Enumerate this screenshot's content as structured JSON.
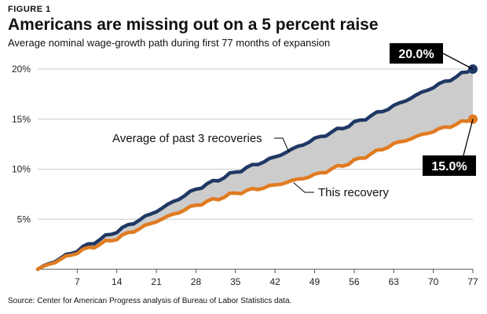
{
  "header": {
    "figure_label": "FIGURE 1",
    "title": "Americans are missing out on a 5 percent raise",
    "subtitle": "Average nominal wage-growth path during first 77 months of expansion"
  },
  "footer": {
    "source": "Source: Center for American Progress analysis of Bureau of Labor Statistics data."
  },
  "colors": {
    "navy": "#1f3864",
    "orange": "#e07b21",
    "gap_fill": "#cccccc",
    "callout_bg": "#000000"
  },
  "chart_data": {
    "type": "line",
    "title": "Americans are missing out on a 5 percent raise",
    "subtitle": "Average nominal wage-growth path during first 77 months of expansion",
    "xlabel": "",
    "ylabel": "",
    "xlim": [
      0,
      77
    ],
    "ylim": [
      0,
      20
    ],
    "x_ticks": [
      7,
      14,
      21,
      28,
      35,
      42,
      49,
      56,
      63,
      70,
      77
    ],
    "x_tick_labels": [
      "7",
      "14",
      "21",
      "28",
      "35",
      "42",
      "49",
      "56",
      "63",
      "70",
      "77"
    ],
    "y_ticks": [
      5,
      10,
      15,
      20
    ],
    "y_tick_labels": [
      "5%",
      "10%",
      "15%",
      "20%"
    ],
    "grid": "horizontal",
    "shaded_gap_between_series": true,
    "series": [
      {
        "name": "Average of past 3 recoveries",
        "color": "#1f3864",
        "points": [
          [
            0,
            0
          ],
          [
            7,
            1.9
          ],
          [
            14,
            3.8
          ],
          [
            21,
            5.8
          ],
          [
            28,
            8.0
          ],
          [
            35,
            9.7
          ],
          [
            42,
            11.2
          ],
          [
            49,
            13.0
          ],
          [
            56,
            14.6
          ],
          [
            63,
            16.3
          ],
          [
            70,
            18.2
          ],
          [
            77,
            20.0
          ]
        ]
      },
      {
        "name": "This recovery",
        "color": "#e07b21",
        "points": [
          [
            0,
            0
          ],
          [
            7,
            1.7
          ],
          [
            14,
            3.1
          ],
          [
            21,
            4.8
          ],
          [
            28,
            6.4
          ],
          [
            35,
            7.6
          ],
          [
            42,
            8.4
          ],
          [
            49,
            9.4
          ],
          [
            56,
            10.8
          ],
          [
            63,
            12.5
          ],
          [
            70,
            13.8
          ],
          [
            77,
            15.0
          ]
        ]
      }
    ],
    "annotations": [
      {
        "text": "Average of past 3 recoveries",
        "points_to_series": 0,
        "near_x": 45
      },
      {
        "text": "This recovery",
        "points_to_series": 1,
        "near_x": 45
      }
    ],
    "callouts": [
      {
        "text": "20.0%",
        "series": 0,
        "x": 77,
        "y": 20.0
      },
      {
        "text": "15.0%",
        "series": 1,
        "x": 77,
        "y": 15.0
      }
    ]
  }
}
